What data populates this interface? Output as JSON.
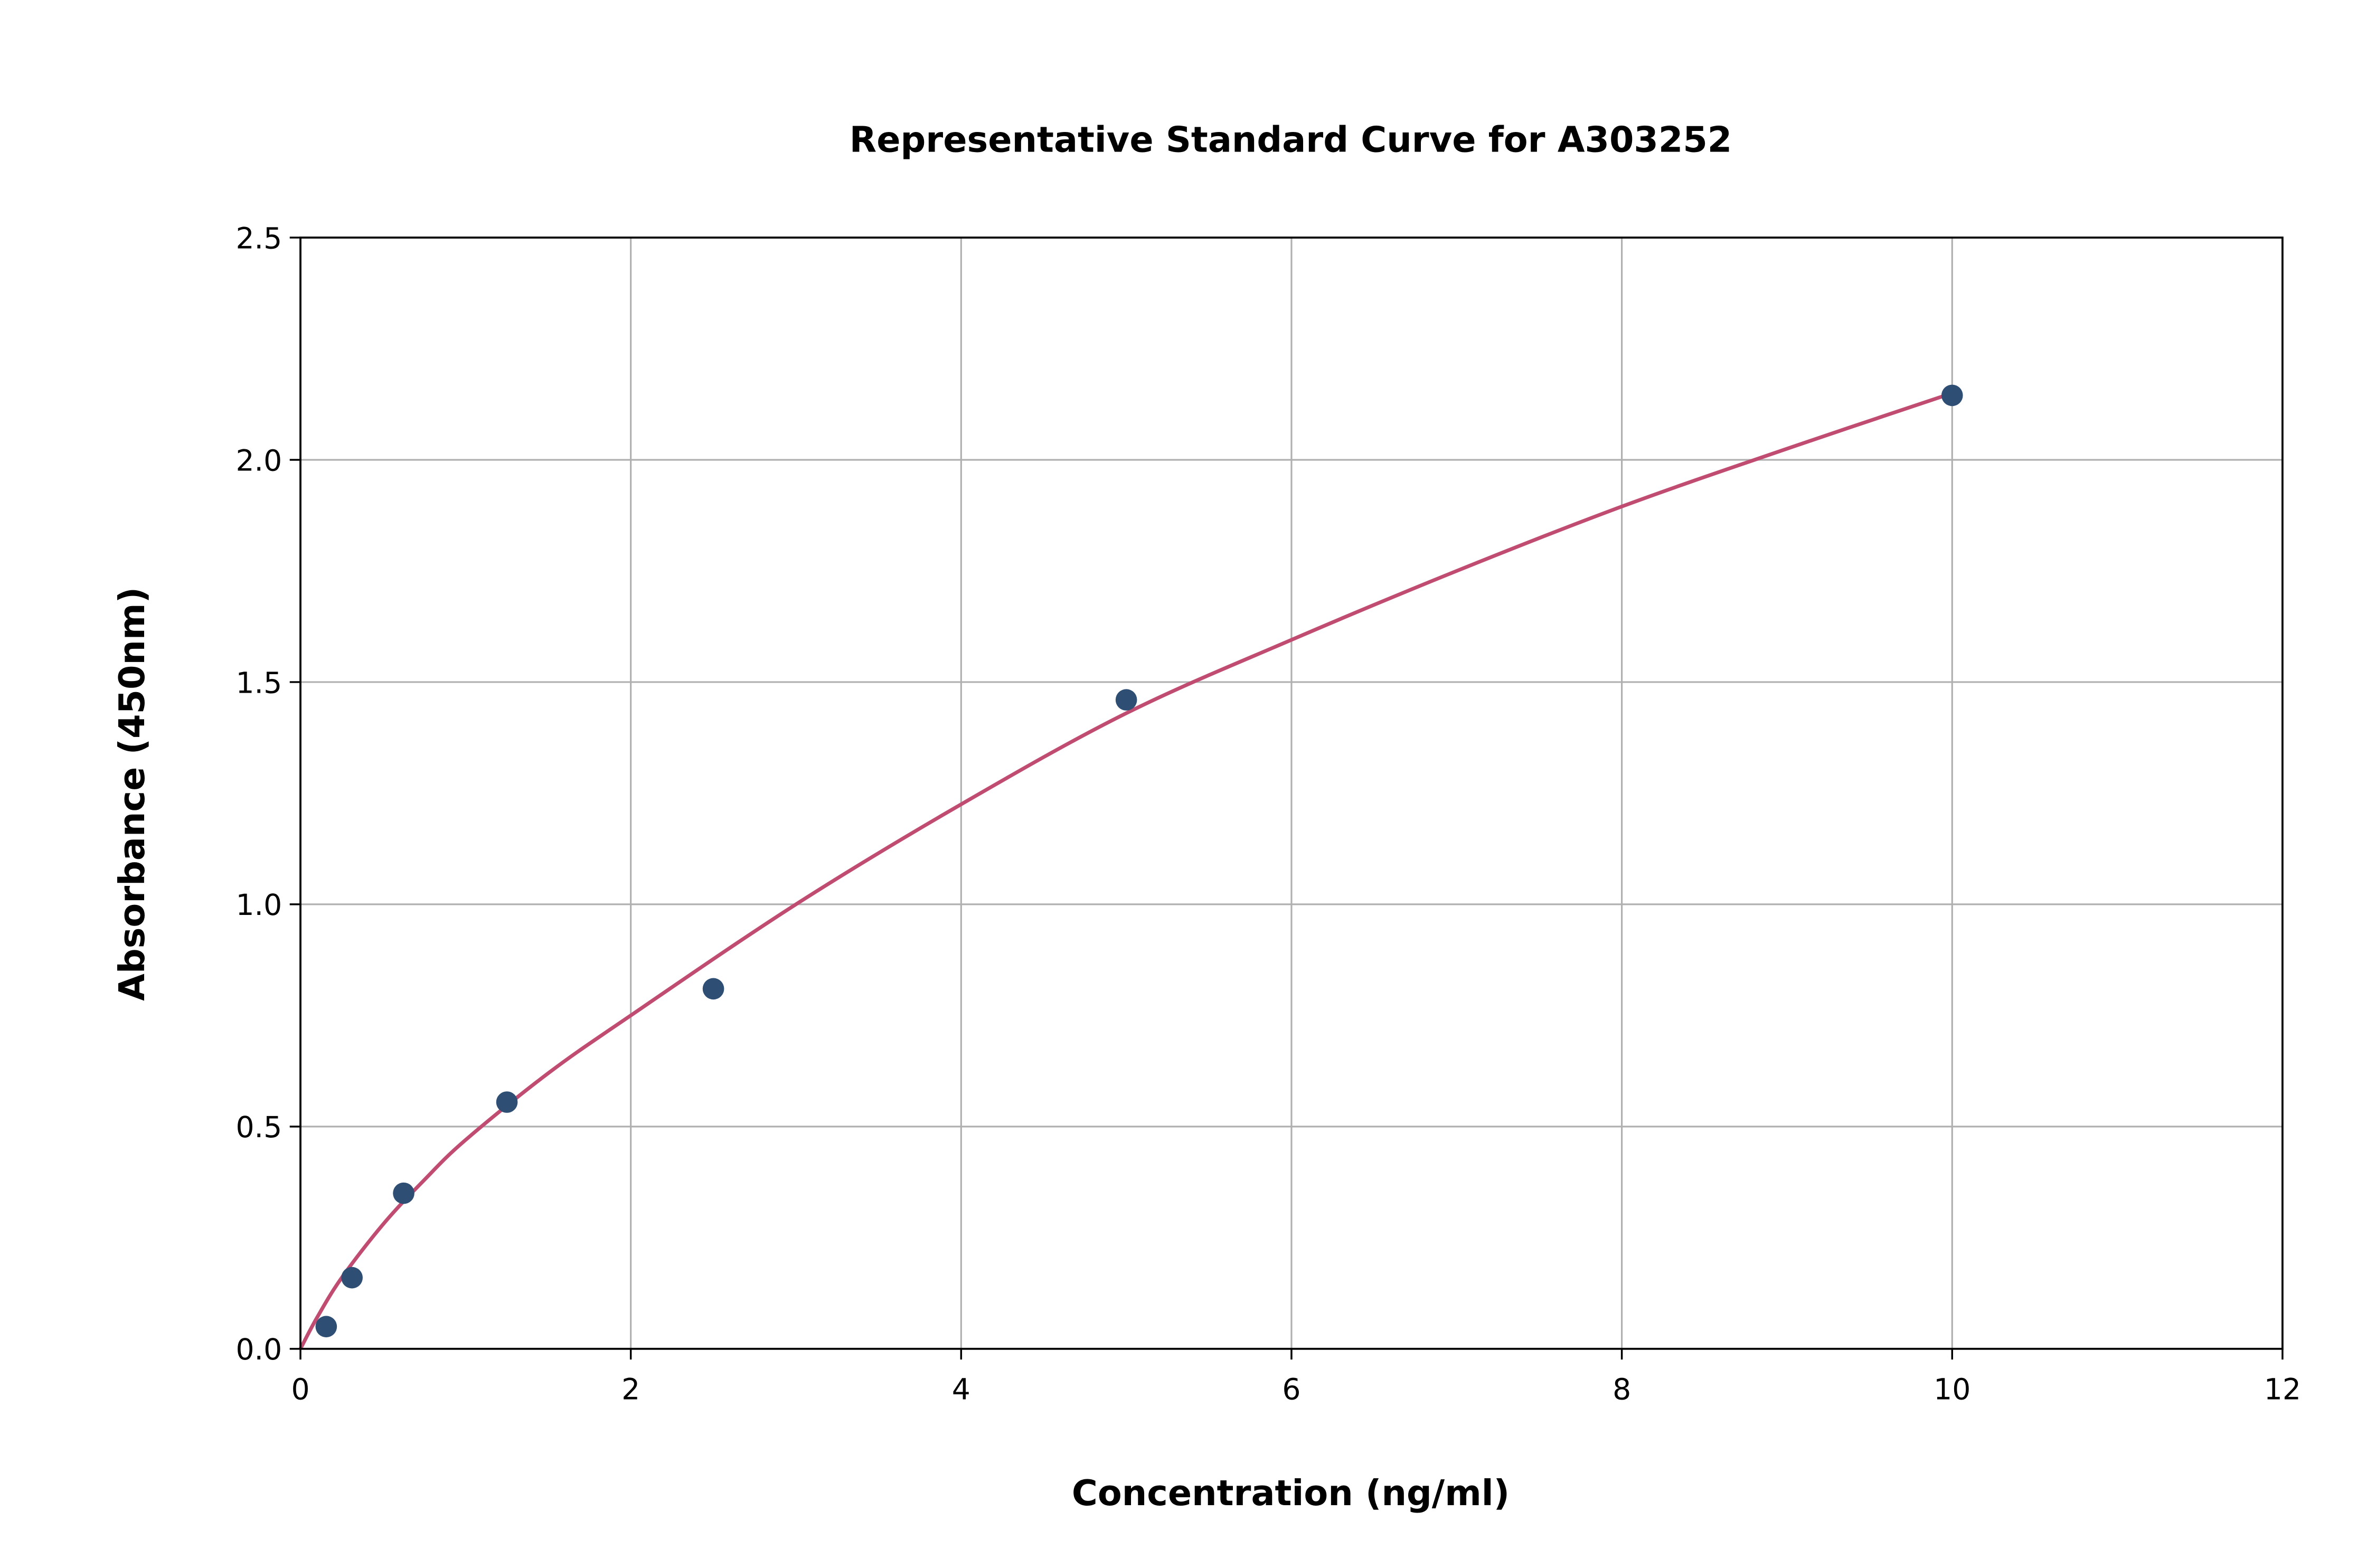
{
  "chart_data": {
    "type": "scatter",
    "title": "Representative Standard Curve for A303252",
    "xlabel": "Concentration (ng/ml)",
    "ylabel": "Absorbance (450nm)",
    "xlim": [
      0,
      12
    ],
    "ylim": [
      0,
      2.5
    ],
    "xticks": [
      "0",
      "2",
      "4",
      "6",
      "8",
      "10",
      "12"
    ],
    "yticks": [
      "0.0",
      "0.5",
      "1.0",
      "1.5",
      "2.0",
      "2.5"
    ],
    "grid": true,
    "points": {
      "x": [
        0.156,
        0.312,
        0.625,
        1.25,
        2.5,
        5,
        10
      ],
      "y": [
        0.05,
        0.16,
        0.35,
        0.555,
        0.81,
        1.46,
        2.145
      ],
      "color": "#2e4f73"
    },
    "fit_curve": {
      "x": [
        0,
        0.1,
        0.25,
        0.5,
        0.75,
        1,
        1.5,
        2,
        3,
        4,
        5,
        6,
        7,
        8,
        9,
        10
      ],
      "y": [
        0,
        0.07,
        0.16,
        0.28,
        0.38,
        0.47,
        0.62,
        0.75,
        1.0,
        1.225,
        1.43,
        1.595,
        1.75,
        1.895,
        2.025,
        2.15
      ],
      "color": "#c04c72"
    }
  }
}
